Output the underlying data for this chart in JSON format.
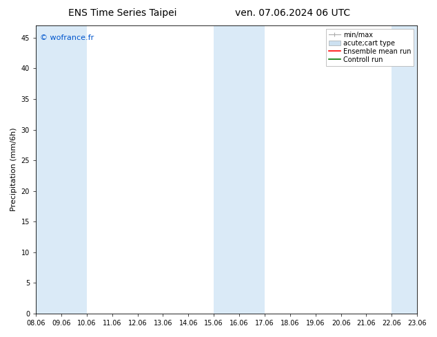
{
  "title_left": "ENS Time Series Taipei",
  "title_right": "ven. 07.06.2024 06 UTC",
  "ylabel": "Precipitation (mm/6h)",
  "watermark": "© wofrance.fr",
  "watermark_color": "#0055cc",
  "xlim_start": 0,
  "xlim_end": 15,
  "ylim": [
    0,
    47
  ],
  "yticks": [
    0,
    5,
    10,
    15,
    20,
    25,
    30,
    35,
    40,
    45
  ],
  "xtick_labels": [
    "08.06",
    "09.06",
    "10.06",
    "11.06",
    "12.06",
    "13.06",
    "14.06",
    "15.06",
    "16.06",
    "17.06",
    "18.06",
    "19.06",
    "20.06",
    "21.06",
    "22.06",
    "23.06"
  ],
  "shaded_regions": [
    [
      0,
      1
    ],
    [
      1,
      2
    ],
    [
      7,
      9
    ],
    [
      14,
      15
    ]
  ],
  "shade_color": "#daeaf7",
  "background_color": "#ffffff",
  "legend_items": [
    {
      "label": "min/max",
      "color": "#aaaaaa",
      "style": "line_with_caps"
    },
    {
      "label": "acute;cart type",
      "color": "#cce0f0",
      "style": "filled"
    },
    {
      "label": "Ensemble mean run",
      "color": "#ff0000",
      "style": "line"
    },
    {
      "label": "Controll run",
      "color": "#007700",
      "style": "line"
    }
  ],
  "title_fontsize": 10,
  "axis_fontsize": 8,
  "tick_fontsize": 7,
  "legend_fontsize": 7,
  "watermark_fontsize": 8
}
